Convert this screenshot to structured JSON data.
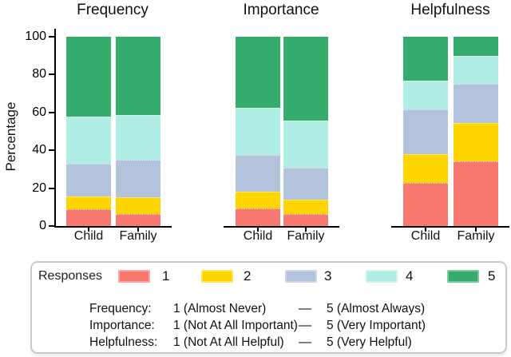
{
  "figure": {
    "ylabel": "Percentage"
  },
  "chart_data": {
    "type": "bar",
    "variant": "stacked-percentage",
    "title": "",
    "xlabel": "",
    "ylabel": "Percentage",
    "ylim": [
      0,
      100
    ],
    "yticks": [
      0,
      20,
      40,
      60,
      80,
      100
    ],
    "grid": false,
    "legend_position": "bottom",
    "categories": [
      "Child",
      "Family"
    ],
    "legend": {
      "title": "Responses",
      "entries": [
        {
          "label": "1",
          "color": "#F8796F"
        },
        {
          "label": "2",
          "color": "#FFD500"
        },
        {
          "label": "3",
          "color": "#B4C3DC"
        },
        {
          "label": "4",
          "color": "#B0EDE5"
        },
        {
          "label": "5",
          "color": "#36AC6C"
        }
      ]
    },
    "panels": [
      {
        "title": "Frequency",
        "series": [
          {
            "category": "Child",
            "values": [
              9,
              6.5,
              17.5,
              25,
              42
            ]
          },
          {
            "category": "Family",
            "values": [
              6.5,
              8.5,
              20,
              23.5,
              41.5
            ]
          }
        ]
      },
      {
        "title": "Importance",
        "series": [
          {
            "category": "Child",
            "values": [
              9.5,
              8.5,
              19.5,
              25,
              37.5
            ]
          },
          {
            "category": "Family",
            "values": [
              6.5,
              7.5,
              17,
              24.5,
              44.5
            ]
          }
        ]
      },
      {
        "title": "Helpfulness",
        "series": [
          {
            "category": "Child",
            "values": [
              23,
              15,
              23.5,
              15.5,
              23
            ]
          },
          {
            "category": "Family",
            "values": [
              34,
              20.5,
              20.5,
              15,
              10
            ]
          }
        ]
      }
    ],
    "scale_notes": [
      {
        "label": "Frequency:",
        "low": "1 (Almost Never)",
        "dash": "—",
        "high": "5 (Almost Always)"
      },
      {
        "label": "Importance:",
        "low": "1 (Not At All Important)",
        "dash": "—",
        "high": "5 (Very Important)"
      },
      {
        "label": "Helpfulness:",
        "low": "1 (Not At All Helpful)",
        "dash": "—",
        "high": "5 (Very Helpful)"
      }
    ]
  }
}
